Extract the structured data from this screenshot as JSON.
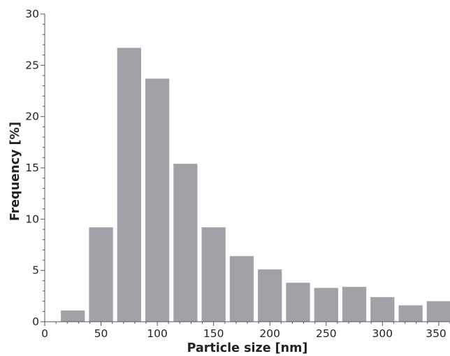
{
  "chart_data": {
    "type": "bar",
    "title": "",
    "xlabel": "Particle size [nm]",
    "ylabel": "Frequency [%]",
    "x_bin_centers": [
      25,
      50,
      75,
      100,
      125,
      150,
      175,
      200,
      225,
      250,
      275,
      300,
      325,
      350
    ],
    "values": [
      1.1,
      9.2,
      26.7,
      23.7,
      15.4,
      9.2,
      6.4,
      5.1,
      3.8,
      3.3,
      3.4,
      2.4,
      1.6,
      2.0
    ],
    "bin_width": 25,
    "xlim": [
      0,
      360
    ],
    "ylim": [
      0,
      30
    ],
    "x_ticks": [
      "0",
      "50",
      "100",
      "150",
      "200",
      "250",
      "300",
      "350"
    ],
    "x_tick_values": [
      0,
      50,
      100,
      150,
      200,
      250,
      300,
      350
    ],
    "y_ticks": [
      "0",
      "5",
      "10",
      "15",
      "20",
      "25",
      "30"
    ],
    "y_tick_values": [
      0,
      5,
      10,
      15,
      20,
      25,
      30
    ],
    "bar_color": "#a0a2a7",
    "grid": false,
    "legend": "none"
  }
}
